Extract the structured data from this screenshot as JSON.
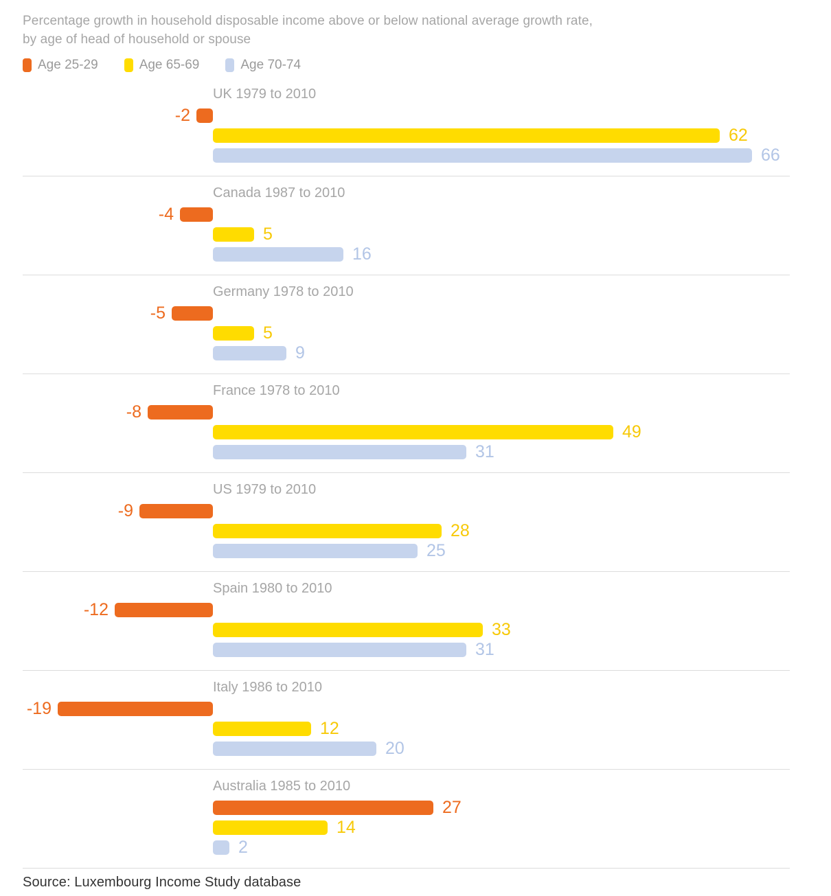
{
  "title": {
    "line1": "Percentage growth in household disposable income above or below national average growth rate,",
    "line2": "by age of head of household or spouse"
  },
  "legend": [
    {
      "label": "Age 25-29"
    },
    {
      "label": "Age 65-69"
    },
    {
      "label": "Age 70-74"
    }
  ],
  "source": "Source: Luxembourg Income Study database",
  "colors": {
    "series": [
      {
        "name": "Age 25-29",
        "bar": "#ed6b1f",
        "text": "#ed6b1f"
      },
      {
        "name": "Age 65-69",
        "bar": "#ffdc00",
        "text": "#f7c908"
      },
      {
        "name": "Age 70-74",
        "bar": "#c6d4ed",
        "text": "#b2c5e6"
      }
    ],
    "title_text": "#a6a6a6",
    "country_text": "#a6a6a6",
    "separator": "#dcdcdc",
    "source_text": "#333333"
  },
  "chart_data": {
    "type": "bar",
    "orientation": "horizontal",
    "title": "Percentage growth in household disposable income above or below national average growth rate, by age of head of household or spouse",
    "legend_position": "top",
    "grid": false,
    "value_range": [
      -19,
      66
    ],
    "series_names": [
      "Age 25-29",
      "Age 65-69",
      "Age 70-74"
    ],
    "groups": [
      {
        "label": "UK 1979 to 2010",
        "values": [
          -2,
          62,
          66
        ]
      },
      {
        "label": "Canada 1987 to 2010",
        "values": [
          -4,
          5,
          16
        ]
      },
      {
        "label": "Germany 1978 to 2010",
        "values": [
          -5,
          5,
          9
        ]
      },
      {
        "label": "France 1978 to 2010",
        "values": [
          -8,
          49,
          31
        ]
      },
      {
        "label": "US 1979 to 2010",
        "values": [
          -9,
          28,
          25
        ]
      },
      {
        "label": "Spain 1980 to 2010",
        "values": [
          -12,
          33,
          31
        ]
      },
      {
        "label": "Italy 1986 to 2010",
        "values": [
          -19,
          12,
          20
        ]
      },
      {
        "label": "Australia 1985 to 2010",
        "values": [
          27,
          14,
          2
        ]
      }
    ]
  }
}
